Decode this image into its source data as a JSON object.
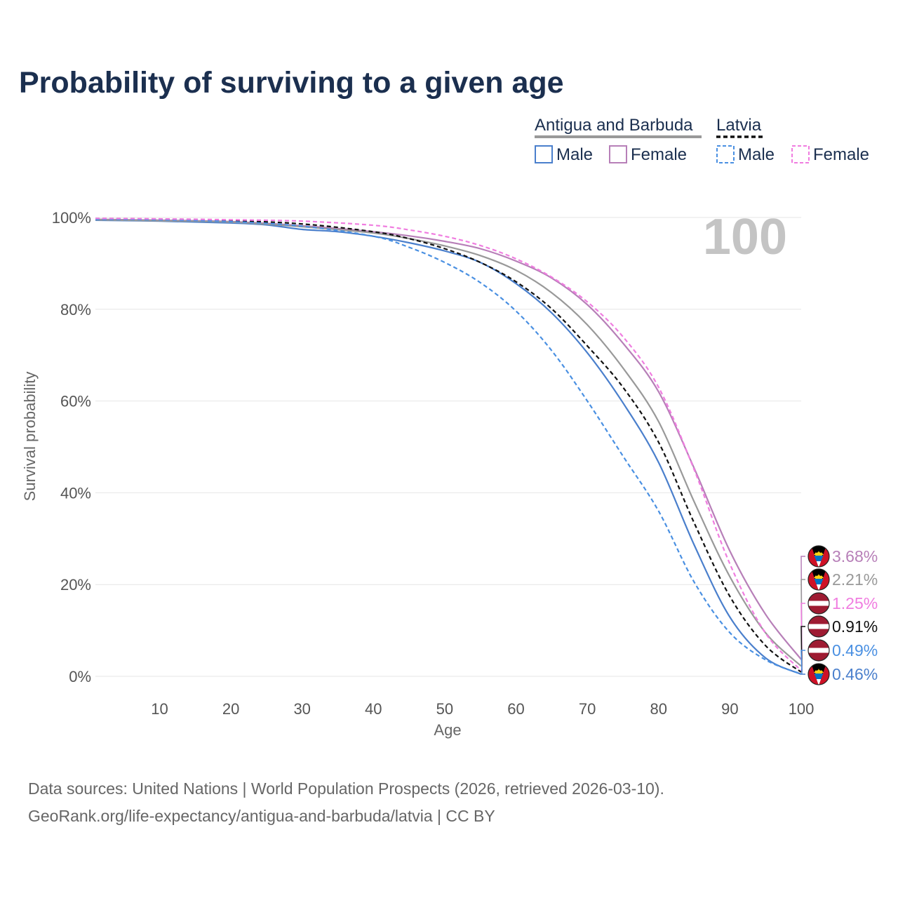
{
  "title": "Probability of surviving to a given age",
  "age_marker": "100",
  "legend": {
    "groups": [
      {
        "country": "Antigua and Barbuda",
        "line_style": "solid",
        "underline_color": "#999999",
        "items": [
          {
            "label": "Male",
            "color": "#4a7fcc"
          },
          {
            "label": "Female",
            "color": "#b77fb8"
          }
        ]
      },
      {
        "country": "Latvia",
        "line_style": "dashed",
        "underline_color": "#111111",
        "items": [
          {
            "label": "Male",
            "color": "#4a90e2"
          },
          {
            "label": "Female",
            "color": "#f07de0"
          }
        ]
      }
    ]
  },
  "source": {
    "line1": "Data sources: United Nations | World Population Prospects (2026, retrieved 2026-03-10).",
    "line2": "GeoRank.org/life-expectancy/antigua-and-barbuda/latvia | CC BY"
  },
  "chart_data": {
    "type": "line",
    "title": "Probability of surviving to a given age",
    "xlabel": "Age",
    "ylabel": "Survival probability",
    "xlim": [
      1,
      100
    ],
    "ylim": [
      0,
      100
    ],
    "x_ticks": [
      10,
      20,
      30,
      40,
      50,
      60,
      70,
      80,
      90,
      100
    ],
    "y_ticks": [
      0,
      20,
      40,
      60,
      80,
      100
    ],
    "y_tick_labels": [
      "0%",
      "20%",
      "40%",
      "60%",
      "80%",
      "100%"
    ],
    "grid": "horizontal",
    "series": [
      {
        "name": "Antigua and Barbuda Male",
        "color": "#4a7fcc",
        "dash": false,
        "x": [
          1,
          10,
          20,
          25,
          30,
          35,
          40,
          45,
          50,
          55,
          60,
          65,
          70,
          75,
          80,
          85,
          90,
          95,
          100
        ],
        "y": [
          99.4,
          99.2,
          98.8,
          98.4,
          97.4,
          96.9,
          95.9,
          94.5,
          92.7,
          90.2,
          85.6,
          79.2,
          70.5,
          59.6,
          46.6,
          28.6,
          12.9,
          4.0,
          0.46
        ],
        "end_label": "0.46%"
      },
      {
        "name": "Antigua and Barbuda Female",
        "color": "#b77fb8",
        "dash": false,
        "x": [
          1,
          10,
          20,
          30,
          40,
          45,
          50,
          55,
          60,
          65,
          70,
          75,
          80,
          85,
          90,
          95,
          100
        ],
        "y": [
          99.6,
          99.4,
          99.1,
          98.2,
          96.9,
          96.0,
          94.8,
          93.2,
          90.5,
          86.8,
          81.0,
          72.6,
          62.0,
          45.3,
          27.3,
          13.5,
          3.68
        ],
        "end_label": "3.68%"
      },
      {
        "name": "Antigua and Barbuda Both",
        "color": "#999999",
        "dash": false,
        "x": [
          1,
          10,
          20,
          30,
          40,
          45,
          50,
          55,
          60,
          65,
          70,
          75,
          80,
          85,
          90,
          95,
          100
        ],
        "y": [
          99.5,
          99.3,
          99.0,
          98.0,
          96.6,
          95.4,
          93.8,
          91.7,
          88.5,
          83.6,
          76.6,
          67.2,
          55.5,
          38.0,
          21.7,
          9.5,
          2.21
        ],
        "end_label": "2.21%"
      },
      {
        "name": "Latvia Both",
        "color": "#111111",
        "dash": true,
        "x": [
          1,
          10,
          20,
          30,
          40,
          45,
          50,
          55,
          60,
          65,
          70,
          75,
          80,
          85,
          90,
          95,
          100
        ],
        "y": [
          99.7,
          99.6,
          99.3,
          98.6,
          96.9,
          95.4,
          93.2,
          90.2,
          86.0,
          80.1,
          72.0,
          63.0,
          51.0,
          33.4,
          17.4,
          6.7,
          0.91
        ],
        "end_label": "0.91%"
      },
      {
        "name": "Latvia Male",
        "color": "#4a90e2",
        "dash": true,
        "x": [
          1,
          10,
          20,
          30,
          40,
          45,
          50,
          55,
          60,
          65,
          70,
          75,
          80,
          85,
          90,
          95,
          100
        ],
        "y": [
          99.6,
          99.5,
          99.1,
          98.1,
          95.9,
          93.5,
          90.2,
          85.8,
          79.6,
          71.0,
          60.0,
          48.0,
          36.0,
          20.5,
          9.5,
          3.6,
          0.49
        ],
        "end_label": "0.49%"
      },
      {
        "name": "Latvia Female",
        "color": "#f07de0",
        "dash": true,
        "x": [
          1,
          10,
          20,
          30,
          40,
          45,
          50,
          55,
          60,
          65,
          70,
          75,
          80,
          85,
          90,
          95,
          100
        ],
        "y": [
          99.8,
          99.7,
          99.5,
          99.2,
          98.3,
          97.3,
          95.9,
          93.9,
          91.0,
          87.0,
          81.6,
          74.0,
          63.0,
          45.0,
          24.5,
          9.4,
          1.25
        ],
        "end_label": "1.25%"
      }
    ],
    "end_labels_order": [
      {
        "text": "3.68%",
        "color": "#b77fb8",
        "flag": "antigua-and-barbuda"
      },
      {
        "text": "2.21%",
        "color": "#999999",
        "flag": "antigua-and-barbuda"
      },
      {
        "text": "1.25%",
        "color": "#f07de0",
        "flag": "latvia"
      },
      {
        "text": "0.91%",
        "color": "#111111",
        "flag": "latvia"
      },
      {
        "text": "0.49%",
        "color": "#4a90e2",
        "flag": "latvia"
      },
      {
        "text": "0.46%",
        "color": "#4a7fcc",
        "flag": "antigua-and-barbuda"
      }
    ]
  }
}
